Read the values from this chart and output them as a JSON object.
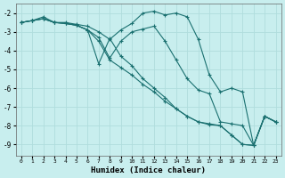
{
  "xlabel": "Humidex (Indice chaleur)",
  "bg_color": "#c8eeee",
  "grid_color": "#b0dddd",
  "line_color": "#1a7070",
  "xlim": [
    -0.5,
    23.5
  ],
  "ylim": [
    -9.6,
    -1.5
  ],
  "yticks": [
    -9,
    -8,
    -7,
    -6,
    -5,
    -4,
    -3,
    -2
  ],
  "xticks": [
    0,
    1,
    2,
    3,
    4,
    5,
    6,
    7,
    8,
    9,
    10,
    11,
    12,
    13,
    14,
    15,
    16,
    17,
    18,
    19,
    20,
    21,
    22,
    23
  ],
  "series": [
    {
      "points": [
        [
          0,
          -2.5
        ],
        [
          1,
          -2.4
        ],
        [
          2,
          -2.2
        ],
        [
          3,
          -2.5
        ],
        [
          4,
          -2.5
        ],
        [
          5,
          -2.6
        ],
        [
          6,
          -2.7
        ],
        [
          7,
          -3.0
        ],
        [
          8,
          -3.4
        ],
        [
          9,
          -2.9
        ],
        [
          10,
          -2.55
        ],
        [
          11,
          -2.0
        ],
        [
          12,
          -1.9
        ],
        [
          13,
          -2.1
        ],
        [
          14,
          -2.0
        ],
        [
          15,
          -2.2
        ],
        [
          16,
          -3.4
        ],
        [
          17,
          -5.3
        ],
        [
          18,
          -6.2
        ],
        [
          19,
          -6.0
        ],
        [
          20,
          -6.2
        ],
        [
          21,
          -9.05
        ],
        [
          22,
          -7.5
        ],
        [
          23,
          -7.8
        ]
      ]
    },
    {
      "points": [
        [
          0,
          -2.5
        ],
        [
          1,
          -2.4
        ],
        [
          2,
          -2.3
        ],
        [
          3,
          -2.5
        ],
        [
          4,
          -2.55
        ],
        [
          5,
          -2.65
        ],
        [
          6,
          -2.9
        ],
        [
          7,
          -3.3
        ],
        [
          8,
          -4.4
        ],
        [
          9,
          -3.5
        ],
        [
          10,
          -3.0
        ],
        [
          11,
          -2.85
        ],
        [
          12,
          -2.7
        ],
        [
          13,
          -3.5
        ],
        [
          14,
          -4.5
        ],
        [
          15,
          -5.5
        ],
        [
          16,
          -6.1
        ],
        [
          17,
          -6.3
        ],
        [
          18,
          -7.8
        ],
        [
          19,
          -7.9
        ],
        [
          20,
          -8.0
        ],
        [
          21,
          -9.05
        ],
        [
          22,
          -7.5
        ],
        [
          23,
          -7.8
        ]
      ]
    },
    {
      "points": [
        [
          0,
          -2.5
        ],
        [
          1,
          -2.4
        ],
        [
          2,
          -2.3
        ],
        [
          3,
          -2.5
        ],
        [
          4,
          -2.55
        ],
        [
          5,
          -2.65
        ],
        [
          6,
          -2.9
        ],
        [
          7,
          -4.7
        ],
        [
          8,
          -3.35
        ],
        [
          9,
          -4.3
        ],
        [
          10,
          -4.8
        ],
        [
          11,
          -5.5
        ],
        [
          12,
          -6.0
        ],
        [
          13,
          -6.5
        ],
        [
          14,
          -7.1
        ],
        [
          15,
          -7.5
        ],
        [
          16,
          -7.8
        ],
        [
          17,
          -7.9
        ],
        [
          18,
          -8.0
        ],
        [
          19,
          -8.5
        ],
        [
          20,
          -9.0
        ],
        [
          21,
          -9.05
        ],
        [
          22,
          -7.5
        ],
        [
          23,
          -7.8
        ]
      ]
    },
    {
      "points": [
        [
          0,
          -2.5
        ],
        [
          1,
          -2.4
        ],
        [
          2,
          -2.3
        ],
        [
          3,
          -2.5
        ],
        [
          4,
          -2.55
        ],
        [
          5,
          -2.65
        ],
        [
          6,
          -2.9
        ],
        [
          7,
          -3.5
        ],
        [
          8,
          -4.5
        ],
        [
          9,
          -4.9
        ],
        [
          10,
          -5.3
        ],
        [
          11,
          -5.8
        ],
        [
          12,
          -6.2
        ],
        [
          13,
          -6.7
        ],
        [
          14,
          -7.1
        ],
        [
          15,
          -7.5
        ],
        [
          16,
          -7.8
        ],
        [
          17,
          -7.95
        ],
        [
          18,
          -8.0
        ],
        [
          19,
          -8.5
        ],
        [
          20,
          -9.0
        ],
        [
          21,
          -9.05
        ],
        [
          22,
          -7.5
        ],
        [
          23,
          -7.8
        ]
      ]
    }
  ]
}
